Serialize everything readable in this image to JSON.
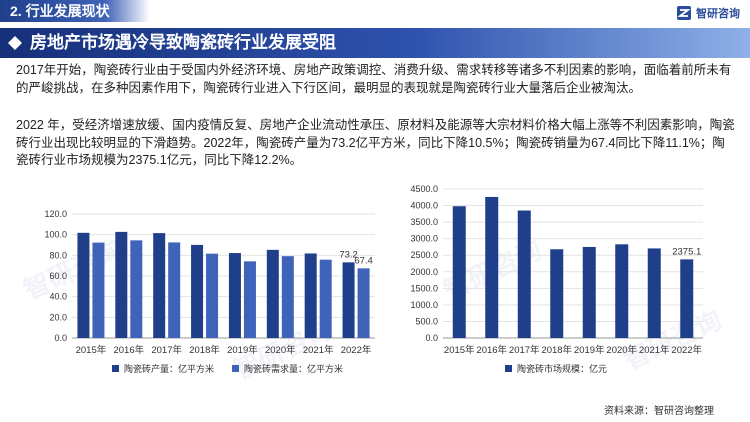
{
  "header": {
    "section_title": "2. 行业发展现状",
    "brand_name": "智研咨询"
  },
  "headline": "房地产市场遇冷导致陶瓷砖行业发展受阻",
  "paragraphs": [
    "2017年开始，陶瓷砖行业由于受国内外经济环境、房地产政策调控、消费升级、需求转移等诸多不利因素的影响，面临着前所未有的严峻挑战，在多种因素作用下，陶瓷砖行业进入下行区间，最明显的表现就是陶瓷砖行业大量落后企业被淘汰。",
    "2022 年，受经济增速放缓、国内疫情反复、房地产企业流动性承压、原材料及能源等大宗材料价格大幅上涨等不利因素影响，陶瓷砖行业出现比较明显的下滑趋势。2022年，陶瓷砖产量为73.2亿平方米，同比下降10.5%；陶瓷砖销量为67.4同比下降11.1%；陶瓷砖行业市场规模为2375.1亿元，同比下降12.2%。"
  ],
  "source": "资料来源：智研咨询整理",
  "watermark": "智研咨询",
  "chart_data": [
    {
      "type": "bar",
      "categories": [
        "2015年",
        "2016年",
        "2017年",
        "2018年",
        "2019年",
        "2020年",
        "2021年",
        "2022年"
      ],
      "series": [
        {
          "name": "陶瓷砖产量：亿平方米",
          "color": "#1f3f8a",
          "values": [
            101.8,
            102.7,
            101.5,
            90.1,
            82.2,
            85.3,
            81.8,
            73.2
          ]
        },
        {
          "name": "陶瓷砖需求量：亿平方米",
          "color": "#3f63b8",
          "values": [
            92.3,
            94.5,
            92.5,
            81.6,
            74.2,
            79.2,
            75.8,
            67.4
          ]
        }
      ],
      "data_labels": [
        "73.2",
        "67.4"
      ],
      "yticks": [
        "0.0",
        "20.0",
        "40.0",
        "60.0",
        "80.0",
        "100.0",
        "120.0"
      ],
      "ylim": [
        0,
        120
      ],
      "grid": true,
      "legend": "bottom"
    },
    {
      "type": "bar",
      "categories": [
        "2015年",
        "2016年",
        "2017年",
        "2018年",
        "2019年",
        "2020年",
        "2021年",
        "2022年"
      ],
      "series": [
        {
          "name": "陶瓷砖市场规模：亿元",
          "color": "#1f3f8a",
          "values": [
            3980,
            4260,
            3850,
            2680,
            2750,
            2830,
            2705,
            2375.1
          ]
        }
      ],
      "data_labels": [
        "2375.1"
      ],
      "yticks": [
        "0.0",
        "500.0",
        "1000.0",
        "1500.0",
        "2000.0",
        "2500.0",
        "3000.0",
        "3500.0",
        "4000.0",
        "4500.0"
      ],
      "ylim": [
        0,
        4500
      ],
      "grid": true,
      "legend": "bottom"
    }
  ]
}
